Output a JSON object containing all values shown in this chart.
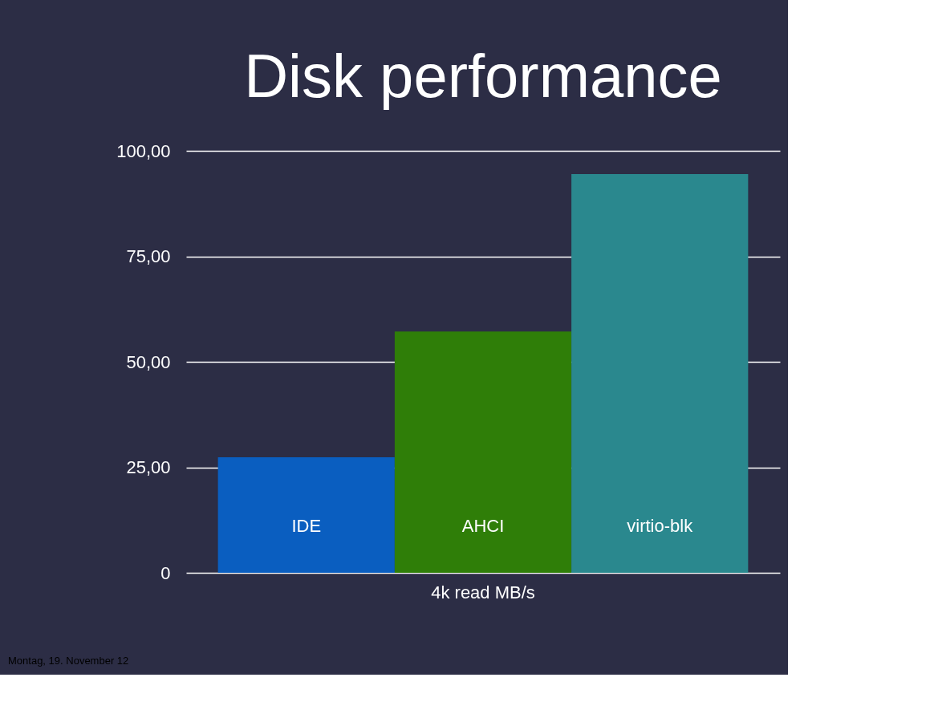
{
  "chart_data": {
    "type": "bar",
    "title": "Disk performance",
    "categories": [
      "4k read MB/s"
    ],
    "series": [
      {
        "name": "IDE",
        "color": "#0a5ec0",
        "values": [
          27.4
        ]
      },
      {
        "name": "AHCI",
        "color": "#2f7e08",
        "values": [
          57.2
        ]
      },
      {
        "name": "virtio-blk",
        "color": "#2a888e",
        "values": [
          94.5
        ]
      }
    ],
    "ylim": [
      0,
      100
    ],
    "yticks": [
      0,
      {
        "value": 25,
        "label": "25,00"
      },
      {
        "value": 50,
        "label": "50,00"
      },
      {
        "value": 75,
        "label": "75,00"
      },
      {
        "value": 100,
        "label": "100,00"
      }
    ],
    "grid": "y",
    "legend": false,
    "annotations": [
      "Montag, 19. November 12"
    ]
  }
}
